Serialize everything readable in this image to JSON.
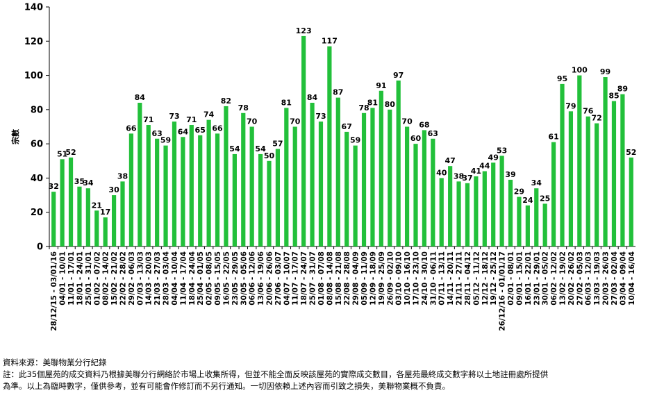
{
  "chart_data": {
    "type": "bar",
    "ylabel": "宗數",
    "ylim": [
      0,
      140
    ],
    "yticks": [
      "0",
      "20",
      "40",
      "60",
      "80",
      "100",
      "120",
      "140"
    ],
    "bar_color": "#22c03a",
    "categories": [
      "28/12/15 - 03/01/16",
      "04/01 - 10/01",
      "11/01 - 17/01",
      "18/01 - 24/01",
      "25/01 - 31/01",
      "01/02 - 07/02",
      "08/02 - 14/02",
      "15/02 - 21/02",
      "22/02 - 28/02",
      "29/02 - 06/03",
      "07/03 - 13/03",
      "14/03 - 20/03",
      "21/03 - 27/03",
      "28/03 - 03/04",
      "04/04 - 10/04",
      "11/04 - 17/04",
      "18/04 - 24/04",
      "25/04 - 01/05",
      "02/05 - 08/05",
      "09/05 - 15/05",
      "16/05 - 22/05",
      "23/05 - 29/05",
      "30/05 - 05/06",
      "06/06 - 12/06",
      "13/06 - 19/06",
      "20/06 - 26/06",
      "27/06 - 03/07",
      "04/07 - 10/07",
      "11/07 - 17/07",
      "18/07 - 24/07",
      "25/07 - 31/07",
      "01/08 - 07/08",
      "08/08 - 14/08",
      "15/08 - 21/08",
      "22/08 - 28/08",
      "29/08 - 04/09",
      "05/09 - 11/09",
      "12/09 - 18/09",
      "19/09 - 25/09",
      "26/09 - 02/10",
      "03/10 - 09/10",
      "10/10 - 16/10",
      "17/10 - 23/10",
      "24/10 - 30/10",
      "31/10 - 06/11",
      "07/11 - 13/11",
      "14/11 - 20/11",
      "21/11 - 27/11",
      "28/11 - 04/12",
      "05/12 - 11/12",
      "12/12 - 18/12",
      "19/12 - 25/12",
      "26/12/16 - 01/01/17",
      "02/01 - 08/01",
      "09/01 - 15/01",
      "16/01 - 22/01",
      "23/01 - 29/01",
      "30/01 - 05/02",
      "06/02 - 12/02",
      "13/02 - 19/02",
      "20/02 - 26/02",
      "27/02 - 05/03",
      "06/03 - 12/03",
      "13/03 - 19/03",
      "20/03 - 26/03",
      "27/03 - 02/04",
      "03/04 - 09/04",
      "10/04 - 16/04"
    ],
    "series": [
      {
        "values": [
          32,
          51,
          52,
          35,
          34,
          21,
          17,
          30,
          38,
          66,
          84,
          71,
          63,
          59,
          73,
          64,
          71,
          65,
          74,
          66,
          82,
          54,
          78,
          70,
          54,
          50,
          57,
          81,
          70,
          123,
          84,
          73,
          117,
          87,
          67,
          59,
          78,
          81,
          91,
          80,
          97,
          70,
          60,
          68,
          63,
          40,
          47,
          38,
          37,
          41,
          44,
          49,
          53,
          39,
          29,
          24,
          34,
          25,
          61,
          95,
          79,
          100,
          76,
          72,
          99,
          85,
          89,
          52
        ]
      }
    ]
  },
  "footnote": {
    "source": "資料來源：美聯物業分行紀錄",
    "note_line1": "註：此35個屋苑的成交資料乃根據美聯分行網絡於市場上收集所得，但並不能全面反映該屋苑的實際成交數目，各屋苑最終成交數字將以土地註冊處所提供",
    "note_line2": "為準。以上為臨時數字，僅供參考，並有可能會作修訂而不另行通知。一切因依賴上述內容而引致之損失，美聯物業概不負責。"
  }
}
